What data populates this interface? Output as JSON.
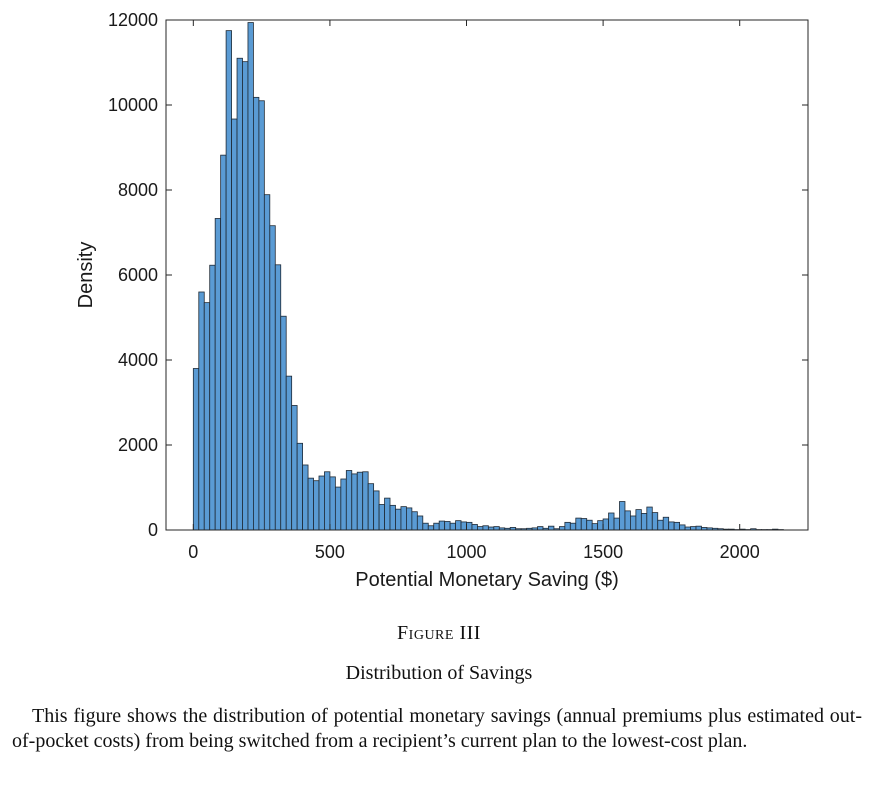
{
  "figure": {
    "label": "Figure III",
    "title": "Distribution of Savings",
    "caption": "This figure shows the distribution of potential monetary savings (annual premiums plus estimated out-of-pocket costs) from being switched from a recipient’s current plan to the lowest-cost plan."
  },
  "colors": {
    "bar_fill": "#5a9bd4",
    "bar_edge": "#1f2a36",
    "axis": "#262626"
  },
  "chart_data": {
    "type": "bar",
    "subtype": "histogram",
    "xlabel": "Potential Monetary Saving ($)",
    "ylabel": "Density",
    "xlim": [
      -100,
      2250
    ],
    "ylim": [
      0,
      12000
    ],
    "xticks": [
      0,
      500,
      1000,
      1500,
      2000
    ],
    "yticks": [
      0,
      2000,
      4000,
      6000,
      8000,
      10000,
      12000
    ],
    "box": true,
    "grid": false,
    "bin_width": 20,
    "bin_start": 0,
    "values": [
      3800,
      5600,
      5350,
      6230,
      7330,
      8820,
      11750,
      9670,
      11100,
      11020,
      11940,
      10180,
      10100,
      7890,
      7160,
      6240,
      5030,
      3620,
      2930,
      2040,
      1530,
      1220,
      1160,
      1270,
      1370,
      1250,
      1010,
      1200,
      1400,
      1320,
      1360,
      1370,
      1090,
      920,
      600,
      750,
      580,
      490,
      550,
      520,
      430,
      330,
      160,
      100,
      160,
      210,
      200,
      160,
      220,
      190,
      180,
      130,
      80,
      100,
      70,
      80,
      50,
      40,
      60,
      30,
      30,
      40,
      50,
      80,
      40,
      90,
      30,
      80,
      180,
      160,
      280,
      270,
      230,
      150,
      220,
      260,
      400,
      280,
      670,
      450,
      330,
      480,
      390,
      540,
      410,
      230,
      300,
      190,
      180,
      120,
      70,
      80,
      90,
      60,
      50,
      40,
      30,
      20,
      20,
      10,
      20,
      10,
      30,
      10,
      10,
      10,
      20,
      10
    ]
  }
}
